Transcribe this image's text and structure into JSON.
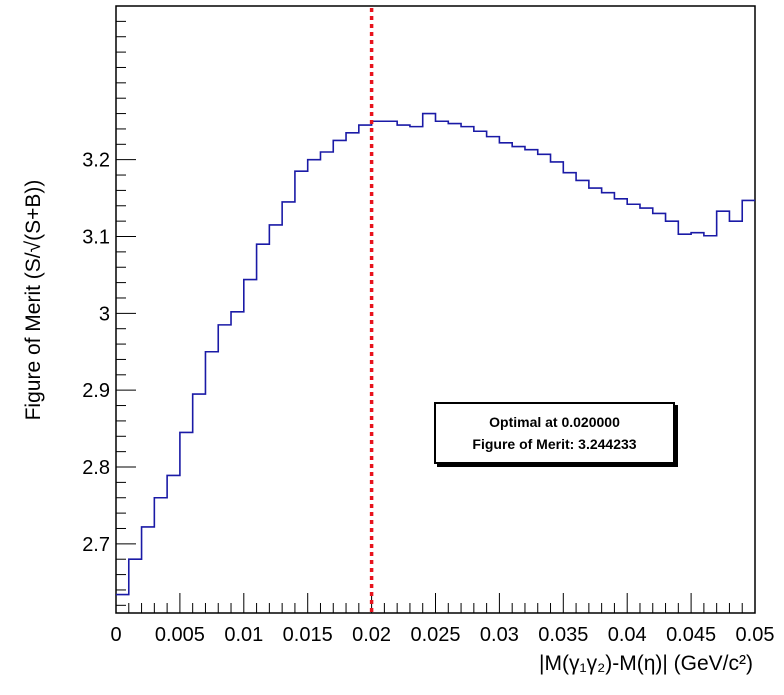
{
  "chart_data": {
    "type": "line",
    "style": "step-histogram",
    "title": "",
    "xlabel": "|M(γ₁γ₂)-M(η)| (GeV/c²)",
    "ylabel": "Figure of Merit (S/√(S+B))",
    "xlim": [
      0,
      0.05
    ],
    "ylim": [
      2.61,
      3.4
    ],
    "x_ticks": [
      0,
      0.005,
      0.01,
      0.015,
      0.02,
      0.025,
      0.03,
      0.035,
      0.04,
      0.045,
      0.05
    ],
    "x_tick_labels": [
      "0",
      "0.005",
      "0.01",
      "0.015",
      "0.02",
      "0.025",
      "0.03",
      "0.035",
      "0.04",
      "0.045",
      "0.05"
    ],
    "y_ticks": [
      2.7,
      2.8,
      2.9,
      3.0,
      3.1,
      3.2
    ],
    "y_tick_labels": [
      "2.7",
      "2.8",
      "2.9",
      "3",
      "3.1",
      "3.2"
    ],
    "bin_width": 0.001,
    "bin_edges_start": 0,
    "series": [
      {
        "color": "#1a1aa6",
        "values": [
          2.634,
          2.68,
          2.722,
          2.76,
          2.789,
          2.845,
          2.895,
          2.95,
          2.985,
          3.002,
          3.044,
          3.09,
          3.115,
          3.145,
          3.185,
          3.2,
          3.21,
          3.225,
          3.235,
          3.245,
          3.25,
          3.25,
          3.245,
          3.243,
          3.26,
          3.25,
          3.247,
          3.243,
          3.237,
          3.23,
          3.222,
          3.217,
          3.213,
          3.207,
          3.197,
          3.183,
          3.173,
          3.163,
          3.157,
          3.149,
          3.142,
          3.137,
          3.13,
          3.12,
          3.103,
          3.105,
          3.101,
          3.133,
          3.12,
          3.147
        ]
      }
    ],
    "optimal_marker": {
      "x": 0.02,
      "color": "#e8141e",
      "style": "dotted"
    },
    "annotation": {
      "line1": "Optimal at 0.020000",
      "line2": "Figure of Merit: 3.244233"
    },
    "grid": false,
    "legend": "none"
  }
}
